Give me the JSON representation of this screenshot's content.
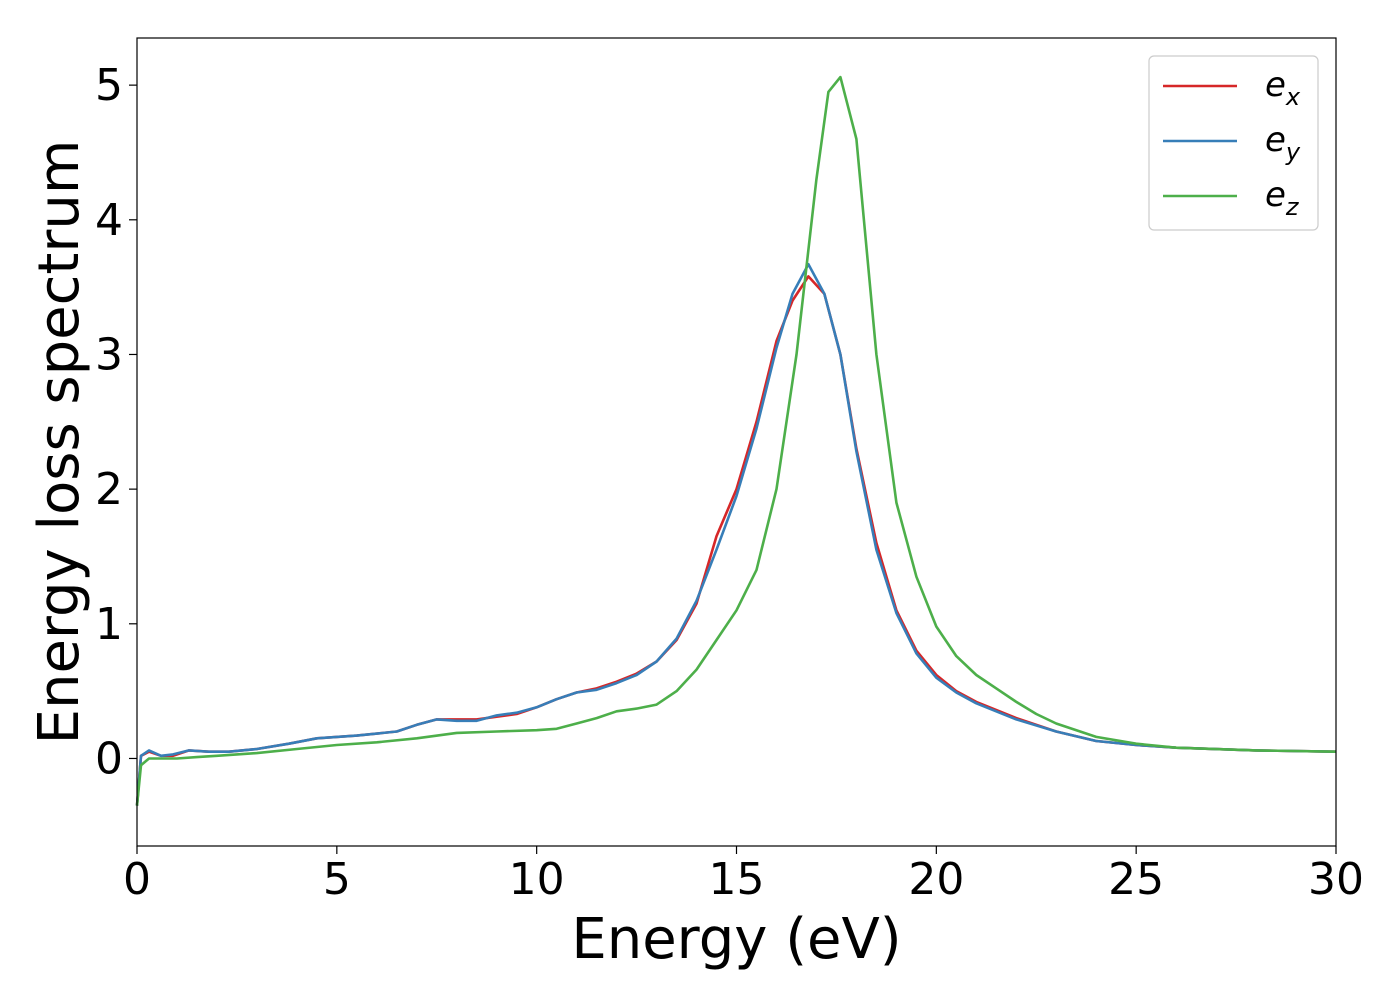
{
  "chart_data": {
    "type": "line",
    "title": "",
    "xlabel": "Energy (eV)",
    "ylabel": "Energy loss spectrum",
    "xlim": [
      0,
      30
    ],
    "ylim": [
      -0.65,
      5.35
    ],
    "xticks": [
      0,
      5,
      10,
      15,
      20,
      25,
      30
    ],
    "yticks": [
      0,
      1,
      2,
      3,
      4,
      5
    ],
    "grid": false,
    "legend_position": "top-right",
    "series": [
      {
        "name": "e_x",
        "label_base": "e",
        "label_sub": "x",
        "color": "#d62728",
        "x": [
          0.0,
          0.1,
          0.3,
          0.6,
          0.9,
          1.3,
          1.8,
          2.3,
          3.0,
          3.8,
          4.5,
          5.5,
          6.5,
          7.0,
          7.5,
          8.0,
          8.5,
          9.0,
          9.5,
          10.0,
          10.5,
          11.0,
          11.5,
          12.0,
          12.5,
          13.0,
          13.5,
          14.0,
          14.5,
          15.0,
          15.5,
          16.0,
          16.4,
          16.8,
          17.2,
          17.6,
          18.0,
          18.5,
          19.0,
          19.5,
          20.0,
          20.5,
          21.0,
          22.0,
          23.0,
          24.0,
          25.0,
          26.0,
          28.0,
          30.0
        ],
        "y": [
          -0.35,
          0.02,
          0.05,
          0.02,
          0.02,
          0.06,
          0.05,
          0.05,
          0.07,
          0.11,
          0.15,
          0.17,
          0.2,
          0.25,
          0.29,
          0.29,
          0.29,
          0.31,
          0.33,
          0.38,
          0.44,
          0.49,
          0.52,
          0.57,
          0.63,
          0.72,
          0.88,
          1.15,
          1.65,
          2.0,
          2.5,
          3.1,
          3.4,
          3.58,
          3.45,
          3.0,
          2.3,
          1.6,
          1.1,
          0.8,
          0.62,
          0.5,
          0.42,
          0.3,
          0.2,
          0.13,
          0.1,
          0.08,
          0.06,
          0.05
        ]
      },
      {
        "name": "e_y",
        "label_base": "e",
        "label_sub": "y",
        "color": "#377eb8",
        "x": [
          0.0,
          0.1,
          0.3,
          0.6,
          0.9,
          1.3,
          1.8,
          2.3,
          3.0,
          3.8,
          4.5,
          5.5,
          6.5,
          7.0,
          7.5,
          8.0,
          8.5,
          9.0,
          9.5,
          10.0,
          10.5,
          11.0,
          11.5,
          12.0,
          12.5,
          13.0,
          13.5,
          14.0,
          14.5,
          15.0,
          15.5,
          16.0,
          16.4,
          16.8,
          17.2,
          17.6,
          18.0,
          18.5,
          19.0,
          19.5,
          20.0,
          20.5,
          21.0,
          22.0,
          23.0,
          24.0,
          25.0,
          26.0,
          28.0,
          30.0
        ],
        "y": [
          -0.35,
          0.02,
          0.06,
          0.02,
          0.03,
          0.06,
          0.05,
          0.05,
          0.07,
          0.11,
          0.15,
          0.17,
          0.2,
          0.25,
          0.29,
          0.28,
          0.28,
          0.32,
          0.34,
          0.38,
          0.44,
          0.49,
          0.51,
          0.56,
          0.62,
          0.72,
          0.89,
          1.17,
          1.55,
          1.95,
          2.45,
          3.05,
          3.45,
          3.67,
          3.45,
          3.0,
          2.28,
          1.55,
          1.08,
          0.78,
          0.6,
          0.49,
          0.41,
          0.29,
          0.2,
          0.13,
          0.1,
          0.08,
          0.06,
          0.05
        ]
      },
      {
        "name": "e_z",
        "label_base": "e",
        "label_sub": "z",
        "color": "#4daf4a",
        "x": [
          0.0,
          0.1,
          0.3,
          0.6,
          1.0,
          1.5,
          2.0,
          3.0,
          4.0,
          5.0,
          6.0,
          7.0,
          8.0,
          9.0,
          10.0,
          10.5,
          11.0,
          11.5,
          12.0,
          12.5,
          13.0,
          13.5,
          14.0,
          14.5,
          15.0,
          15.5,
          16.0,
          16.5,
          17.0,
          17.3,
          17.6,
          18.0,
          18.5,
          19.0,
          19.5,
          20.0,
          20.5,
          21.0,
          21.5,
          22.0,
          22.5,
          23.0,
          24.0,
          25.0,
          26.0,
          28.0,
          30.0
        ],
        "y": [
          -0.35,
          -0.05,
          0.0,
          0.0,
          0.0,
          0.01,
          0.02,
          0.04,
          0.07,
          0.1,
          0.12,
          0.15,
          0.19,
          0.2,
          0.21,
          0.22,
          0.26,
          0.3,
          0.35,
          0.37,
          0.4,
          0.5,
          0.66,
          0.88,
          1.1,
          1.4,
          2.0,
          3.0,
          4.3,
          4.95,
          5.06,
          4.6,
          3.0,
          1.9,
          1.35,
          0.98,
          0.76,
          0.62,
          0.52,
          0.42,
          0.33,
          0.26,
          0.16,
          0.11,
          0.08,
          0.06,
          0.05
        ]
      }
    ]
  }
}
